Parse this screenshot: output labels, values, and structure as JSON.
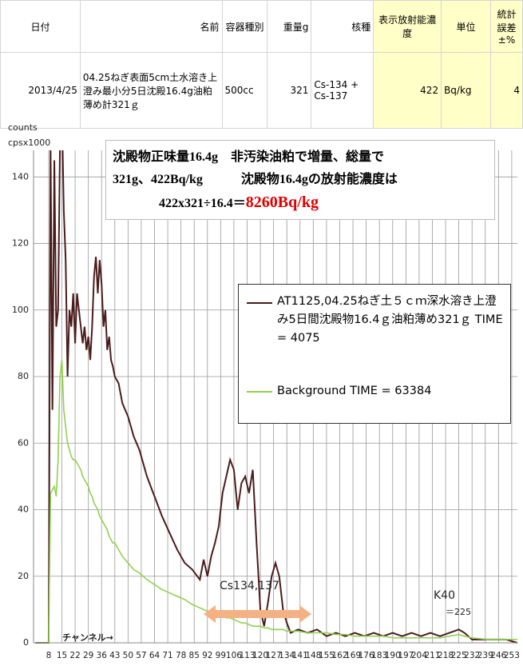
{
  "table": {
    "header": [
      "日付",
      "名前",
      "容器種別",
      "重量g",
      "核種",
      "表示放射能濃度",
      "単位",
      "統計誤差±%"
    ],
    "row": [
      "2013/4/25",
      "04.25ねぎ表面5cm土水溶き上澄み最小分5日沈殿16.4g油粕薄め計321ｇ",
      "500cc",
      "321",
      "Cs-134 + Cs-137",
      "422",
      "Bq/kg",
      "4"
    ]
  },
  "chart_data": {
    "type": "line",
    "y_label_lines": [
      "counts",
      "cpsx1000"
    ],
    "x_label": "チャンネル→",
    "annotation": {
      "lines": [
        "沈殿物正味量16.4g　非汚染油粕で増量、総量で",
        "321g、422Bq/kg　　　沈殿物16.4gの放射能濃度は"
      ],
      "formula": "422x321÷16.4＝",
      "result": "8260Bq/kg"
    },
    "peak_labels": [
      "Cs134,137",
      "K40",
      "＝225"
    ],
    "x": [
      1,
      8,
      9,
      10,
      11,
      12,
      13,
      14,
      15,
      16,
      17,
      18,
      19,
      20,
      21,
      22,
      23,
      24,
      25,
      26,
      27,
      28,
      29,
      30,
      31,
      32,
      33,
      34,
      35,
      36,
      37,
      38,
      39,
      40,
      41,
      42,
      43,
      45,
      47,
      50,
      53,
      56,
      60,
      64,
      68,
      72,
      76,
      80,
      84,
      88,
      90,
      92,
      94,
      96,
      98,
      100,
      102,
      104,
      106,
      108,
      110,
      112,
      114,
      116,
      118,
      120,
      122,
      124,
      126,
      128,
      130,
      132,
      134,
      136,
      140,
      145,
      150,
      155,
      160,
      165,
      170,
      175,
      180,
      185,
      190,
      195,
      200,
      205,
      210,
      215,
      220,
      225,
      228,
      232,
      240,
      250,
      256
    ],
    "series": [
      {
        "name": "AT1125,04.25ねぎ土５ｃｍ深水溶き上澄み5日間沈殿物16.4ｇ油粕薄め321ｇ TIME = 4075",
        "color": "#4b1c1c",
        "values": [
          0,
          0,
          150,
          70,
          145,
          95,
          100,
          150,
          160,
          130,
          115,
          80,
          100,
          95,
          105,
          90,
          105,
          100,
          95,
          90,
          95,
          88,
          92,
          85,
          95,
          110,
          116,
          105,
          115,
          108,
          95,
          100,
          88,
          92,
          85,
          83,
          80,
          78,
          72,
          68,
          62,
          58,
          50,
          44,
          38,
          33,
          28,
          24,
          22,
          19,
          25,
          20,
          26,
          30,
          35,
          45,
          50,
          55,
          52,
          40,
          48,
          50,
          45,
          52,
          30,
          10,
          5,
          12,
          20,
          24,
          20,
          10,
          6,
          3,
          4,
          3,
          4,
          2,
          3,
          2,
          3,
          2,
          3,
          2,
          3,
          2,
          3,
          2,
          3,
          2,
          3,
          4,
          3,
          1,
          1,
          1,
          0
        ]
      },
      {
        "name": "Background  TIME = 63384",
        "color": "#92d050",
        "values": [
          0,
          0,
          45,
          46,
          47,
          44,
          55,
          80,
          85,
          70,
          65,
          60,
          58,
          56,
          55,
          55,
          54,
          53,
          52,
          50,
          49,
          48,
          47,
          45,
          44,
          42,
          41,
          40,
          38,
          37,
          36,
          35,
          34,
          32,
          31,
          30,
          30,
          28,
          26,
          24,
          22,
          21,
          19,
          17.5,
          16,
          15,
          14,
          13,
          11.5,
          10.5,
          10,
          9.5,
          9,
          9,
          8.5,
          8,
          7.5,
          7.5,
          7,
          6.5,
          6,
          6,
          5.5,
          5,
          5,
          5,
          4.5,
          4.5,
          4,
          4,
          4,
          4,
          3.5,
          3.5,
          3.5,
          3,
          3,
          3,
          2.5,
          2.5,
          2,
          2,
          2,
          2,
          1.5,
          1.5,
          1.5,
          1.5,
          1.5,
          1.5,
          2,
          2.5,
          2,
          1.5,
          1,
          1,
          1
        ]
      }
    ],
    "xlim": [
      0,
      256
    ],
    "xticks": [
      8,
      15,
      22,
      29,
      36,
      43,
      50,
      57,
      64,
      71,
      78,
      85,
      92,
      99,
      106,
      113,
      120,
      127,
      134,
      141,
      148,
      155,
      162,
      169,
      176,
      183,
      190,
      197,
      204,
      211,
      218,
      225,
      232,
      239,
      246,
      253
    ],
    "ylim": [
      0,
      148
    ],
    "yticks": [
      0,
      20,
      40,
      60,
      80,
      100,
      120,
      140
    ],
    "grid": true
  }
}
